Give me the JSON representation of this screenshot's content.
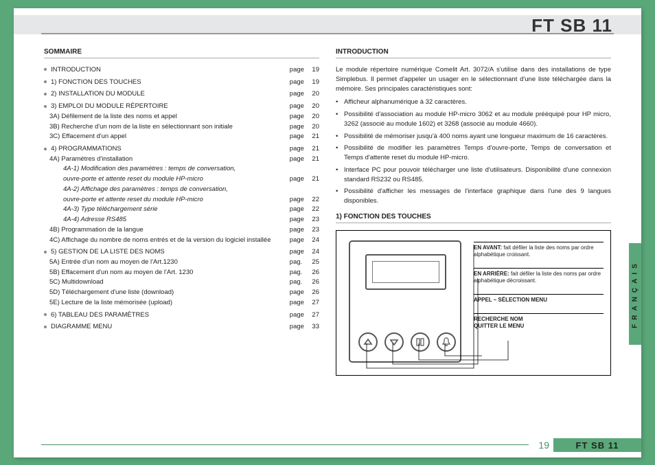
{
  "doc": {
    "title": "FT SB 11",
    "page_number": "19",
    "footer_label": "FT SB 11",
    "language_tab": "FRANÇAIS"
  },
  "summary": {
    "title": "SOMMAIRE",
    "page_word": "page",
    "pag_word": "pag.",
    "groups": [
      {
        "main": {
          "label": "INTRODUCTION",
          "pg": "19",
          "bullet": true
        }
      },
      {
        "main": {
          "label": "1) FONCTION DES TOUCHES",
          "pg": "19",
          "bullet": true
        }
      },
      {
        "main": {
          "label": "2) INSTALLATION DU MODULE",
          "pg": "20",
          "bullet": true
        }
      },
      {
        "main": {
          "label": "3) EMPLOI DU MODULE RÉPERTOIRE",
          "pg": "20",
          "bullet": true
        },
        "subs": [
          {
            "label": "3A) Défilement de la liste des noms et appel",
            "pg": "20"
          },
          {
            "label": "3B) Recherche d'un nom de la liste en sélectionnant son initiale",
            "pg": "20"
          },
          {
            "label": "3C) Effacement d'un appel",
            "pg": "21"
          }
        ]
      },
      {
        "main": {
          "label": "4) PROGRAMMATIONS",
          "pg": "21",
          "bullet": true
        },
        "subs": [
          {
            "label": "4A) Paramètres d'installation",
            "pg": "21"
          }
        ],
        "subsubs1": [
          {
            "l1": "4A-1) Modification des paramètres : temps de conversation,",
            "l2": "ouvre-porte et attente reset du module HP-micro",
            "pg": "21"
          },
          {
            "l1": "4A-2) Affichage des paramètres : temps de conversation,",
            "l2": "ouvre-porte et attente reset du module HP-micro",
            "pg": "22"
          },
          {
            "l1": "4A-3) Type téléchargement série",
            "pg": "22"
          },
          {
            "l1": "4A-4) Adresse RS485",
            "pg": "23"
          }
        ],
        "tail": [
          {
            "label": "4B) Programmation de la langue",
            "pg": "23"
          },
          {
            "label": "4C) Affichage du nombre de noms entrés et de la version du logiciel installée",
            "pg": "24"
          }
        ]
      },
      {
        "main": {
          "label": "5) GESTION DE LA LISTE DES NOMS",
          "pg": "24",
          "bullet": true
        },
        "subs": [
          {
            "label": "5A) Entrée d'un nom au moyen de l'Art.1230",
            "pg": "25",
            "pag": true
          },
          {
            "label": "5B) Effacement d'un nom au moyen de l'Art. 1230",
            "pg": "26",
            "pag": true
          },
          {
            "label": "5C) Multidownload",
            "pg": "26",
            "pag": true
          },
          {
            "label": "5D) Téléchargement d'une liste (download)",
            "pg": "26"
          },
          {
            "label": "5E) Lecture de la liste mémorisée (upload)",
            "pg": "27"
          }
        ]
      },
      {
        "main": {
          "label": "6) TABLEAU DES PARAMÈTRES",
          "pg": "27",
          "bullet": true
        }
      },
      {
        "main": {
          "label": "DIAGRAMME MENU",
          "pg": "33",
          "bullet": true
        }
      }
    ]
  },
  "intro": {
    "title": "INTRODUCTION",
    "body": "Le module répertoire numérique Comelit Art. 3072/A s'utilise dans des installations de type Simplebus. Il permet d'appeler un usager en le sélectionnant d'une liste téléchargée dans la mémoire. Ses principales caractéristiques sont:",
    "features": [
      "Afficheur alphanumérique à 32 caractères.",
      "Possibilité d'association au module HP-micro 3062 et au module prééquipé pour HP micro, 3262 (associé au module 1602) et 3268 (associé au module 4660).",
      "Possibilité de mémoriser jusqu'à 400 noms ayant une longueur maximum de 16 caractères.",
      "Possibilité de modifier les paramètres Temps d'ouvre-porte, Temps de conversation et Temps d'attente reset du module HP-micro.",
      "Interface PC pour pouvoir télécharger une liste d'utilisateurs. Disponibilité d'une connexion standard RS232 ou RS485.",
      "Possibilité d'afficher les messages de l'interface graphique dans l'une des 9 langues disponibles."
    ]
  },
  "keys": {
    "title": "1) FONCTION DES TOUCHES",
    "callouts": [
      {
        "bold": "EN AVANT:",
        "text": " fait défiler la liste des noms par ordre alphabétique croissant."
      },
      {
        "bold": "EN ARRIÈRE:",
        "text": " fait défiler la liste des noms par ordre alphabétique décroissant."
      },
      {
        "single": "APPEL – SÉLECTION MENU"
      },
      {
        "single": "RECHERCHE NOM\nQUITTER LE MENU"
      }
    ]
  },
  "colors": {
    "brand_green": "#5aa87a",
    "header_gray": "#e6e7e8",
    "rule_gray": "#999999",
    "text": "#222222",
    "footer_num": "#4a8f68"
  }
}
